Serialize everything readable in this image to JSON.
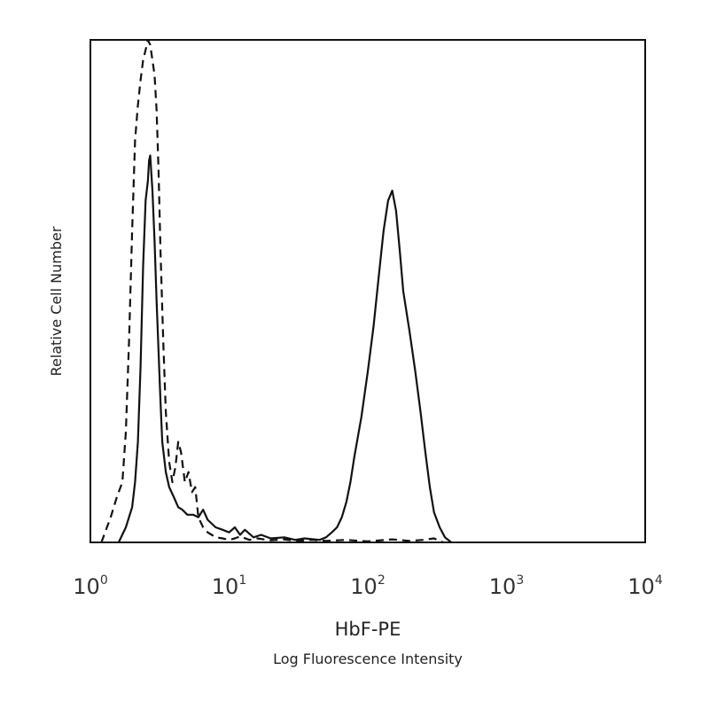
{
  "chart_data": {
    "type": "line",
    "xscale": "log",
    "xlim": [
      1,
      10000
    ],
    "ylim": [
      0,
      100
    ],
    "grid": false,
    "legend": "none",
    "xlabel": "HbF-PE",
    "xlabel_sub": "Log Fluorescence Intensity",
    "ylabel": "Relative Cell Number",
    "xticks": [
      {
        "base": "10",
        "exp": "0",
        "value": 1
      },
      {
        "base": "10",
        "exp": "1",
        "value": 10
      },
      {
        "base": "10",
        "exp": "2",
        "value": 100
      },
      {
        "base": "10",
        "exp": "3",
        "value": 1000
      },
      {
        "base": "10",
        "exp": "4",
        "value": 10000
      }
    ],
    "series": [
      {
        "style": "dashed",
        "x": [
          1.2,
          1.4,
          1.55,
          1.7,
          1.8,
          1.9,
          2.0,
          2.1,
          2.2,
          2.3,
          2.4,
          2.5,
          2.6,
          2.7,
          2.8,
          2.9,
          3.0,
          3.1,
          3.2,
          3.35,
          3.5,
          3.7,
          3.9,
          4.1,
          4.3,
          4.5,
          4.8,
          5.1,
          5.4,
          5.7,
          6.0,
          6.5,
          7.0,
          7.5,
          8.0,
          9.0,
          10,
          11,
          12,
          14,
          16,
          20,
          25,
          30,
          40,
          50,
          70,
          100,
          150,
          200,
          250,
          300,
          350
        ],
        "y": [
          0,
          5,
          9,
          12,
          22,
          40,
          62,
          80,
          87,
          92,
          96,
          98,
          100,
          99,
          96,
          93,
          86,
          74,
          58,
          40,
          26,
          16,
          12,
          15,
          20,
          18,
          12,
          14,
          10,
          11,
          5,
          3,
          2,
          1.5,
          1,
          0.8,
          0.5,
          0.8,
          1.2,
          0.5,
          0.8,
          0.4,
          0.6,
          0.3,
          0.5,
          0.3,
          0.5,
          0.2,
          0.6,
          0.3,
          0.5,
          0.8,
          0
        ]
      },
      {
        "style": "solid",
        "x": [
          1.6,
          1.8,
          2.0,
          2.1,
          2.2,
          2.3,
          2.4,
          2.5,
          2.6,
          2.65,
          2.7,
          2.8,
          2.9,
          3.0,
          3.1,
          3.2,
          3.3,
          3.5,
          3.7,
          4.0,
          4.3,
          4.6,
          5.0,
          5.5,
          6.0,
          6.5,
          7.0,
          8.0,
          9.0,
          10,
          11,
          12,
          13,
          15,
          17,
          20,
          25,
          30,
          35,
          45,
          50,
          55,
          60,
          65,
          70,
          75,
          80,
          90,
          100,
          110,
          120,
          130,
          140,
          150,
          160,
          170,
          180,
          200,
          220,
          240,
          260,
          280,
          300,
          330,
          360,
          400
        ],
        "y": [
          0,
          3,
          7,
          12,
          20,
          35,
          55,
          68,
          72,
          76,
          77,
          70,
          60,
          48,
          38,
          28,
          20,
          14,
          11,
          9,
          7,
          6.5,
          5.5,
          5.5,
          5,
          6.5,
          4.5,
          3,
          2.5,
          2,
          3,
          1.5,
          2.5,
          1,
          1.5,
          0.8,
          1,
          0.5,
          0.8,
          0.5,
          1,
          2,
          3,
          5,
          8,
          12,
          17,
          25,
          34,
          43,
          53,
          62,
          68,
          70,
          66,
          58,
          50,
          42,
          34,
          26,
          18,
          11,
          6,
          3,
          1,
          0
        ]
      }
    ]
  }
}
